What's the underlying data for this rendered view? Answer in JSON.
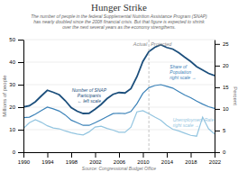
{
  "chart_data": {
    "type": "line",
    "title": "Hunger Strike",
    "subtitle": "The number of people in the federal Supplemental Nutrition Assistance Program (SNAP)\nhas nearly doubled since the 2008 financial crisis. But that figure is expected to shrink\nover the next several years as the economy strengthens.",
    "source": "Source: Congressional Budget Office",
    "x": [
      1990,
      1991,
      1992,
      1993,
      1994,
      1995,
      1996,
      1997,
      1998,
      1999,
      2000,
      2001,
      2002,
      2003,
      2004,
      2005,
      2006,
      2007,
      2008,
      2009,
      2010,
      2011,
      2012,
      2013,
      2014,
      2015,
      2016,
      2017,
      2018,
      2019,
      2020,
      2021,
      2022
    ],
    "series": [
      {
        "color": "#1c4f7c",
        "axis": "y",
        "values": [
          20.1,
          20.6,
          22.4,
          25.0,
          27.5,
          26.6,
          25.5,
          22.9,
          19.8,
          18.2,
          17.2,
          17.3,
          19.1,
          21.2,
          23.8,
          25.7,
          26.5,
          26.3,
          28.2,
          33.5,
          40.3,
          44.7,
          46.6,
          47.7,
          46.5,
          45.8,
          44.2,
          42.2,
          40.3,
          38.0,
          36.5,
          35.0,
          34.0
        ]
      },
      {
        "color": "#3b82b8",
        "axis": "y2",
        "values": [
          8.0,
          8.1,
          8.8,
          9.6,
          10.4,
          10.0,
          9.5,
          8.6,
          7.4,
          6.8,
          6.2,
          6.2,
          6.8,
          7.5,
          8.2,
          8.9,
          9.0,
          8.9,
          9.4,
          11.2,
          13.6,
          14.9,
          15.4,
          15.6,
          15.2,
          14.8,
          14.0,
          13.2,
          12.6,
          11.8,
          11.1,
          10.5,
          10.1
        ]
      },
      {
        "color": "#93c5e0",
        "axis": "y2",
        "values": [
          5.5,
          6.8,
          7.5,
          6.9,
          6.1,
          5.6,
          5.4,
          4.9,
          4.5,
          4.2,
          4.0,
          4.7,
          5.8,
          6.0,
          5.5,
          5.1,
          4.6,
          4.6,
          5.8,
          9.3,
          9.6,
          8.9,
          8.1,
          7.4,
          6.2,
          5.3,
          4.9,
          4.4,
          3.9,
          3.7,
          8.1,
          5.4,
          4.2
        ]
      }
    ],
    "xlim": [
      1990,
      2022
    ],
    "xticks": [
      1990,
      1994,
      1998,
      2002,
      2006,
      2010,
      2014,
      2018,
      2022
    ],
    "ylim": [
      0,
      50
    ],
    "yticks": [
      0,
      10,
      20,
      30,
      40,
      50
    ],
    "y2lim": [
      0,
      26
    ],
    "y2ticks": [
      0,
      5,
      10,
      15,
      20,
      25
    ],
    "y_label": "Millions of people",
    "y2_label": "Percent",
    "grid": true,
    "split": {
      "x": 2011,
      "labels": [
        "Actual",
        "Projected"
      ]
    },
    "annotations": [
      {
        "text": "Number of SNAP\nParticipants\n← left scale",
        "x": 2001,
        "y": 25,
        "axis": "y",
        "color": "#1c4f7c"
      },
      {
        "text": "Share of\nPopulation\nright scale →",
        "x": 2014.5,
        "y": 18.5,
        "axis": "y2",
        "color": "#3b82b8"
      },
      {
        "text": "Unemployment Rate\nright scale →",
        "x": 2015.0,
        "y": 6.8,
        "axis": "y2",
        "color": "#93c5e0"
      }
    ]
  }
}
